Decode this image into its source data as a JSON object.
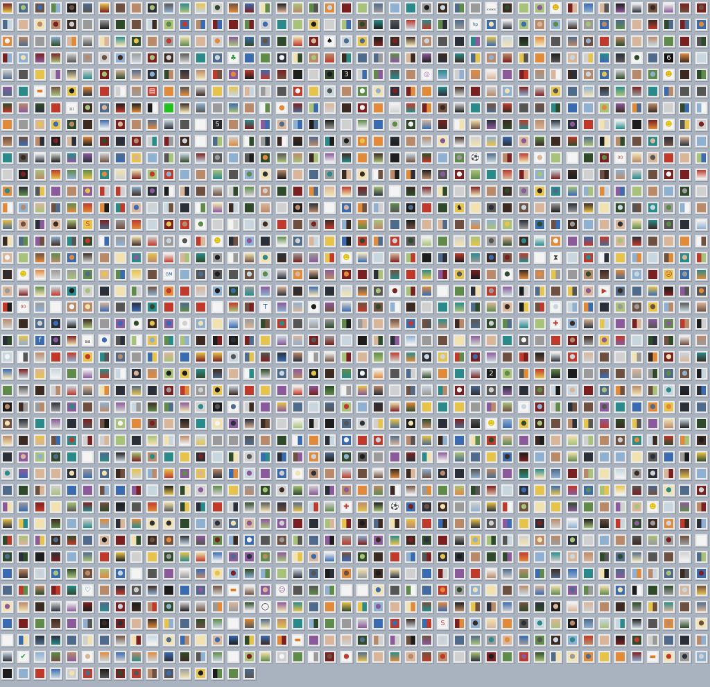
{
  "gallery": {
    "columns": 44,
    "rows": 41,
    "total_thumbnails": 1776,
    "last_row_count": 16,
    "palette": [
      "#3b2a22",
      "#6e5040",
      "#b98a6a",
      "#d9b59a",
      "#2a2f3a",
      "#4f6a8a",
      "#8fb0d0",
      "#c8d6e0",
      "#2e4a2a",
      "#5f8a4a",
      "#a9c27a",
      "#7a2020",
      "#c0392b",
      "#e6c34a",
      "#f2e2b0",
      "#1d1d1d",
      "#555555",
      "#9a9a9a",
      "#d0d0d0",
      "#f4f4f4",
      "#8a5a9a",
      "#3a6ab0",
      "#e08a3a",
      "#2a8a8a"
    ],
    "special_icons": [
      {
        "row": 0,
        "col": 34,
        "name": "smiley-face-icon",
        "glyph": "☻",
        "bg": "#f4f4f4",
        "fg": "#e0b000"
      },
      {
        "row": 1,
        "col": 29,
        "name": "hp-logo-icon",
        "glyph": "hp",
        "bg": "#f4f4f4",
        "fg": "#1a5aa0"
      },
      {
        "row": 2,
        "col": 20,
        "name": "spade-icon",
        "glyph": "♠",
        "bg": "#f4f4f4",
        "fg": "#111111"
      },
      {
        "row": 3,
        "col": 14,
        "name": "clover-icon",
        "glyph": "♣",
        "bg": "#f4f4f4",
        "fg": "#2a9a3a"
      },
      {
        "row": 3,
        "col": 41,
        "name": "number-six-icon",
        "glyph": "6",
        "bg": "#111111",
        "fg": "#f4f4f4"
      },
      {
        "row": 4,
        "col": 21,
        "name": "number-three-icon",
        "glyph": "3",
        "bg": "#1d1d1d",
        "fg": "#f4f4f4"
      },
      {
        "row": 4,
        "col": 26,
        "name": "rainbow-circle-icon",
        "glyph": "◎",
        "bg": "#f4f4f4",
        "fg": "#c070c0"
      },
      {
        "row": 4,
        "col": 41,
        "name": "smiley-face-icon",
        "glyph": "☻",
        "bg": "#f4f4f4",
        "fg": "#e0b000"
      },
      {
        "row": 5,
        "col": 2,
        "name": "india-flag-icon",
        "glyph": "▬",
        "bg": "#f4f4f4",
        "fg": "#e07a20"
      },
      {
        "row": 5,
        "col": 9,
        "name": "news-text-icon",
        "glyph": "▤",
        "bg": "#c0392b",
        "fg": "#f4f4f4"
      },
      {
        "row": 6,
        "col": 10,
        "name": "green-square-icon",
        "glyph": "■",
        "bg": "#20c020",
        "fg": "#20c020"
      },
      {
        "row": 6,
        "col": 17,
        "name": "color-wheel-icon",
        "glyph": "●",
        "bg": "#f4f4f4",
        "fg": "#e08a3a"
      },
      {
        "row": 7,
        "col": 13,
        "name": "number-five-icon",
        "glyph": "5",
        "bg": "#2a2a2a",
        "fg": "#f4f4f4"
      },
      {
        "row": 7,
        "col": 41,
        "name": "smiley-face-icon",
        "glyph": "☻",
        "bg": "#f4f4f4",
        "fg": "#e0c000"
      },
      {
        "row": 9,
        "col": 29,
        "name": "soccer-ball-icon",
        "glyph": "⚽",
        "bg": "#f4f4f4",
        "fg": "#111111"
      },
      {
        "row": 9,
        "col": 38,
        "name": "double-zero-icon",
        "glyph": "00",
        "bg": "#f4f4f4",
        "fg": "#c0392b"
      },
      {
        "row": 12,
        "col": 28,
        "name": "ferrari-logo-icon",
        "glyph": "♞",
        "bg": "#e6c34a",
        "fg": "#111111"
      },
      {
        "row": 13,
        "col": 5,
        "name": "superman-logo-icon",
        "glyph": "S",
        "bg": "#e6c34a",
        "fg": "#c0392b"
      },
      {
        "row": 14,
        "col": 13,
        "name": "smiley-face-icon",
        "glyph": "☻",
        "bg": "#f4f4f4",
        "fg": "#e0c000"
      },
      {
        "row": 15,
        "col": 21,
        "name": "smiley-face-icon",
        "glyph": "☻",
        "bg": "#f4f4f4",
        "fg": "#e0c000"
      },
      {
        "row": 15,
        "col": 34,
        "name": "hourglass-icon",
        "glyph": "⧗",
        "bg": "#f4f4f4",
        "fg": "#333333"
      },
      {
        "row": 16,
        "col": 1,
        "name": "smiley-face-icon",
        "glyph": "☻",
        "bg": "#f4f4f4",
        "fg": "#e0c000"
      },
      {
        "row": 16,
        "col": 10,
        "name": "gm-logo-icon",
        "glyph": "GM",
        "bg": "#f4f4f4",
        "fg": "#1a5aa0"
      },
      {
        "row": 16,
        "col": 41,
        "name": "frowning-face-icon",
        "glyph": "☹",
        "bg": "#e6c34a",
        "fg": "#c0392b"
      },
      {
        "row": 17,
        "col": 37,
        "name": "youtube-logo-icon",
        "glyph": "▶",
        "bg": "#f4f4f4",
        "fg": "#c0392b"
      },
      {
        "row": 18,
        "col": 1,
        "name": "double-zero-icon",
        "glyph": "00",
        "bg": "#f4f4f4",
        "fg": "#c0392b"
      },
      {
        "row": 18,
        "col": 16,
        "name": "tata-logo-icon",
        "glyph": "T",
        "bg": "#f4f4f4",
        "fg": "#1a5aa0"
      },
      {
        "row": 19,
        "col": 34,
        "name": "red-cross-icon",
        "glyph": "✚",
        "bg": "#f4f4f4",
        "fg": "#c0392b"
      },
      {
        "row": 20,
        "col": 2,
        "name": "fedora-logo-icon",
        "glyph": "f",
        "bg": "#3a6ab0",
        "fg": "#f4f4f4"
      },
      {
        "row": 22,
        "col": 30,
        "name": "number-two-icon",
        "glyph": "2",
        "bg": "#1d1d1d",
        "fg": "#f4f4f4"
      },
      {
        "row": 25,
        "col": 30,
        "name": "smiley-face-icon",
        "glyph": "☻",
        "bg": "#f4f4f4",
        "fg": "#e0c000"
      },
      {
        "row": 30,
        "col": 21,
        "name": "red-cross-icon",
        "glyph": "✚",
        "bg": "#f4f4f4",
        "fg": "#c0392b"
      },
      {
        "row": 30,
        "col": 24,
        "name": "soccer-ball-icon",
        "glyph": "⚽",
        "bg": "#f4f4f4",
        "fg": "#111111"
      },
      {
        "row": 30,
        "col": 40,
        "name": "smiley-face-icon",
        "glyph": "☻",
        "bg": "#f4f4f4",
        "fg": "#e0c000"
      },
      {
        "row": 35,
        "col": 5,
        "name": "heart-icon",
        "glyph": "♡",
        "bg": "#f4f4f4",
        "fg": "#3a6ab0"
      },
      {
        "row": 35,
        "col": 14,
        "name": "india-flag-icon",
        "glyph": "▬",
        "bg": "#f4f4f4",
        "fg": "#e07a20"
      },
      {
        "row": 35,
        "col": 17,
        "name": "cartoon-character-icon",
        "glyph": "☺",
        "bg": "#f4f4f4",
        "fg": "#8a5a9a"
      },
      {
        "row": 36,
        "col": 16,
        "name": "intel-logo-icon",
        "glyph": "◯",
        "bg": "#f4f4f4",
        "fg": "#1d1d1d"
      },
      {
        "row": 37,
        "col": 27,
        "name": "superman-logo-icon",
        "glyph": "S",
        "bg": "#f4f4f4",
        "fg": "#c0392b"
      },
      {
        "row": 38,
        "col": 18,
        "name": "india-flag-icon",
        "glyph": "▬",
        "bg": "#f4f4f4",
        "fg": "#e07a20"
      },
      {
        "row": 39,
        "col": 1,
        "name": "checkmark-icon",
        "glyph": "✔",
        "bg": "#f4f4f4",
        "fg": "#2a9a3a"
      },
      {
        "row": 39,
        "col": 40,
        "name": "india-flag-icon",
        "glyph": "▬",
        "bg": "#f4f4f4",
        "fg": "#e07a20"
      }
    ],
    "text_tiles": [
      {
        "row": 0,
        "col": 30,
        "text": "xxxxxx"
      },
      {
        "row": 6,
        "col": 4,
        "text": "III"
      },
      {
        "row": 20,
        "col": 5,
        "text": "DND"
      }
    ]
  }
}
